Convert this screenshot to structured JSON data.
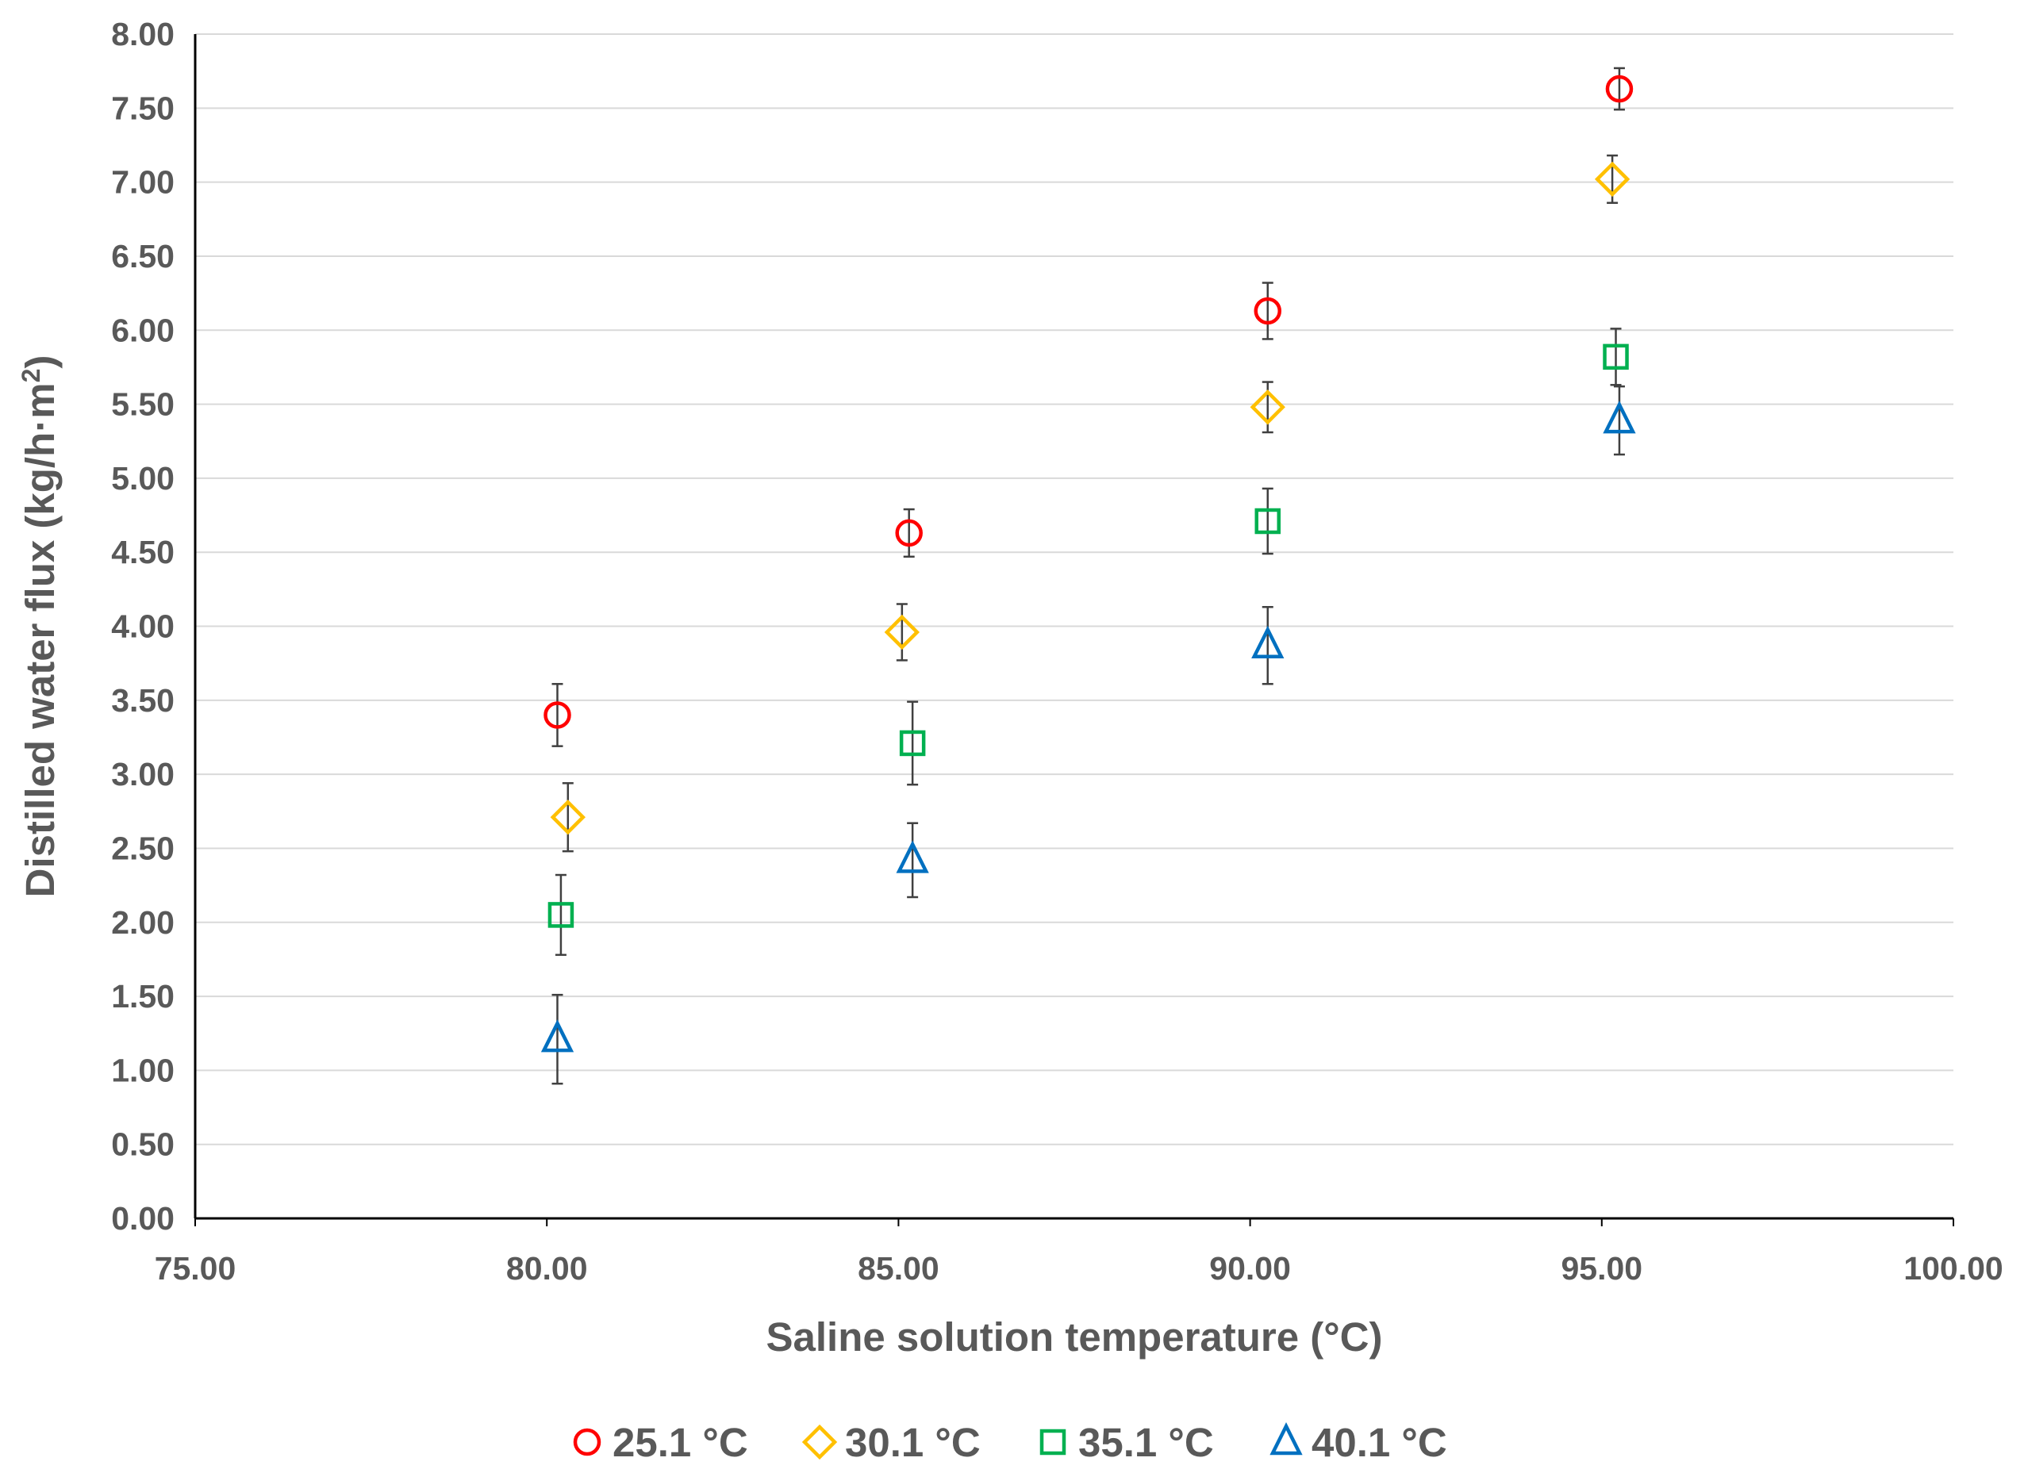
{
  "chart_data": {
    "type": "scatter",
    "title": "",
    "xlabel": "Saline solution temperature (°C)",
    "ylabel_main": "Distilled water flux (kg/h·m",
    "ylabel_sup": "2",
    "ylabel_close": ")",
    "xlim": [
      75,
      100
    ],
    "ylim": [
      0,
      8
    ],
    "xticks": [
      "75.00",
      "80.00",
      "85.00",
      "90.00",
      "95.00",
      "100.00"
    ],
    "yticks": [
      "0.00",
      "0.50",
      "1.00",
      "1.50",
      "2.00",
      "2.50",
      "3.00",
      "3.50",
      "4.00",
      "4.50",
      "5.00",
      "5.50",
      "6.00",
      "6.50",
      "7.00",
      "7.50",
      "8.00"
    ],
    "grid": "horizontal",
    "legend_position": "bottom",
    "series": [
      {
        "name": "25.1 °C",
        "marker": "circle",
        "color": "#FF0000",
        "x": [
          80.15,
          85.15,
          90.25,
          95.25
        ],
        "y": [
          3.4,
          4.63,
          6.13,
          7.63
        ],
        "err": [
          0.21,
          0.16,
          0.19,
          0.14
        ]
      },
      {
        "name": "30.1 °C",
        "marker": "diamond",
        "color": "#FFC000",
        "x": [
          80.3,
          85.05,
          90.25,
          95.15
        ],
        "y": [
          2.71,
          3.96,
          5.48,
          7.02
        ],
        "err": [
          0.23,
          0.19,
          0.17,
          0.16
        ]
      },
      {
        "name": "35.1 °C",
        "marker": "square",
        "color": "#00B050",
        "x": [
          80.2,
          85.2,
          90.25,
          95.2
        ],
        "y": [
          2.05,
          3.21,
          4.71,
          5.82
        ],
        "err": [
          0.27,
          0.28,
          0.22,
          0.19
        ]
      },
      {
        "name": "40.1 °C",
        "marker": "triangle",
        "color": "#0070C0",
        "x": [
          80.15,
          85.2,
          90.25,
          95.25
        ],
        "y": [
          1.21,
          2.42,
          3.87,
          5.39
        ],
        "err": [
          0.3,
          0.25,
          0.26,
          0.23
        ]
      }
    ]
  }
}
